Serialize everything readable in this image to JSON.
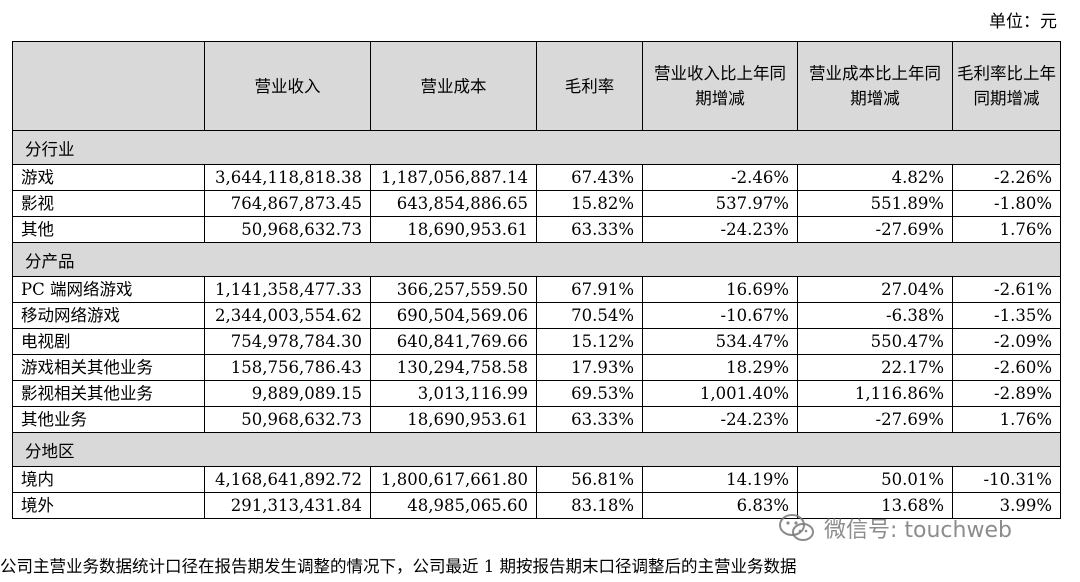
{
  "unit_label": "单位：元",
  "columns": [
    "营业收入",
    "营业成本",
    "毛利率",
    "营业收入比上年同期增减",
    "营业成本比上年同期增减",
    "毛利率比上年同期增减"
  ],
  "sections": [
    {
      "title": "分行业",
      "rows": [
        {
          "name": "游戏",
          "values": [
            "3,644,118,818.38",
            "1,187,056,887.14",
            "67.43%",
            "-2.46%",
            "4.82%",
            "-2.26%"
          ]
        },
        {
          "name": "影视",
          "values": [
            "764,867,873.45",
            "643,854,886.65",
            "15.82%",
            "537.97%",
            "551.89%",
            "-1.80%"
          ]
        },
        {
          "name": "其他",
          "values": [
            "50,968,632.73",
            "18,690,953.61",
            "63.33%",
            "-24.23%",
            "-27.69%",
            "1.76%"
          ]
        }
      ]
    },
    {
      "title": "分产品",
      "rows": [
        {
          "name": "PC 端网络游戏",
          "values": [
            "1,141,358,477.33",
            "366,257,559.50",
            "67.91%",
            "16.69%",
            "27.04%",
            "-2.61%"
          ]
        },
        {
          "name": "移动网络游戏",
          "values": [
            "2,344,003,554.62",
            "690,504,569.06",
            "70.54%",
            "-10.67%",
            "-6.38%",
            "-1.35%"
          ]
        },
        {
          "name": "电视剧",
          "values": [
            "754,978,784.30",
            "640,841,769.66",
            "15.12%",
            "534.47%",
            "550.47%",
            "-2.09%"
          ]
        },
        {
          "name": "游戏相关其他业务",
          "values": [
            "158,756,786.43",
            "130,294,758.58",
            "17.93%",
            "18.29%",
            "22.17%",
            "-2.60%"
          ]
        },
        {
          "name": "影视相关其他业务",
          "values": [
            "9,889,089.15",
            "3,013,116.99",
            "69.53%",
            "1,001.40%",
            "1,116.86%",
            "-2.89%"
          ]
        },
        {
          "name": "其他业务",
          "values": [
            "50,968,632.73",
            "18,690,953.61",
            "63.33%",
            "-24.23%",
            "-27.69%",
            "1.76%"
          ]
        }
      ]
    },
    {
      "title": "分地区",
      "rows": [
        {
          "name": "境内",
          "values": [
            "4,168,641,892.72",
            "1,800,617,661.80",
            "56.81%",
            "14.19%",
            "50.01%",
            "-10.31%"
          ]
        },
        {
          "name": "境外",
          "values": [
            "291,313,431.84",
            "48,985,065.60",
            "83.18%",
            "6.83%",
            "13.68%",
            "3.99%"
          ]
        }
      ]
    }
  ],
  "footnote": "公司主营业务数据统计口径在报告期发生调整的情况下，公司最近 1 期按报告期末口径调整后的主营业务数据",
  "watermark": {
    "text": "微信号: touchweb",
    "icon": "wechat-icon"
  }
}
